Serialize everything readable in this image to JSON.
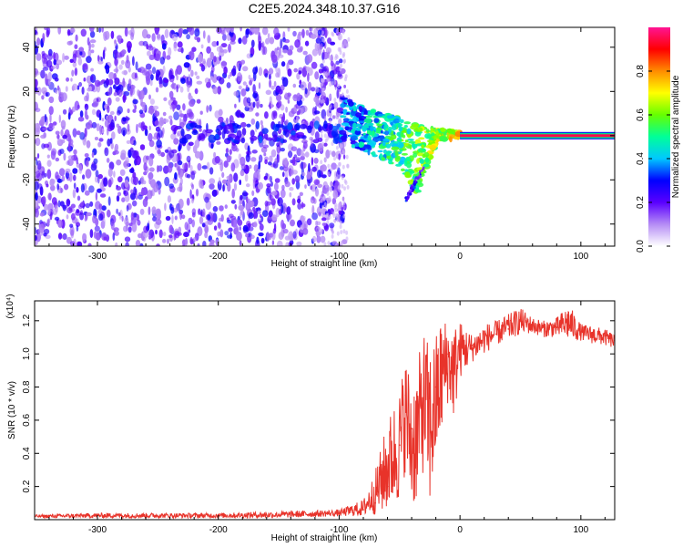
{
  "figure": {
    "title": "C2E5.2024.348.10.37.G16"
  },
  "chart_data": [
    {
      "type": "heatmap",
      "panel": "top",
      "title": "C2E5.2024.348.10.37.G16",
      "xlabel": "Height of straight line (km)",
      "ylabel": "Frequency (Hz)",
      "xlim": [
        -352,
        128
      ],
      "ylim": [
        -50,
        49
      ],
      "x_ticks": [
        -300,
        -200,
        -100,
        0,
        100
      ],
      "x_tick_labels": [
        "-300",
        "-200",
        "-100",
        "0",
        "100"
      ],
      "y_ticks": [
        -40,
        -20,
        0,
        20,
        40
      ],
      "y_tick_labels": [
        "-40",
        "-20",
        "0",
        "20",
        "40"
      ],
      "colorbar": {
        "label": "Normalized spectral amplitude",
        "range": [
          0,
          1
        ],
        "ticks": [
          0.0,
          0.2,
          0.4,
          0.6,
          0.8
        ],
        "tick_labels": [
          "0.0",
          "0.2",
          "0.4",
          "0.6",
          "0.8"
        ],
        "colormap": [
          "#ffffff",
          "#b58cf5",
          "#5a00ff",
          "#0000ff",
          "#00c8ff",
          "#00ff99",
          "#66ff00",
          "#ffff00",
          "#ff8c00",
          "#ff0000",
          "#ff1493"
        ]
      },
      "features": {
        "noise_region_x": [
          -352,
          -95
        ],
        "dispersive_tail": [
          {
            "x": -100,
            "f_upper": 18,
            "f_lower": -2
          },
          {
            "x": -75,
            "f_upper": 12,
            "f_lower": -8
          },
          {
            "x": -50,
            "f_upper": 8,
            "f_lower": -14
          },
          {
            "x": -35,
            "f_upper": 5,
            "f_lower": -28
          },
          {
            "x": -20,
            "f_upper": 3,
            "f_lower": -3
          },
          {
            "x": 0,
            "f_upper": 2,
            "f_lower": -1
          }
        ],
        "carrier_line": {
          "x_start": 0,
          "x_end": 128,
          "frequency": 0,
          "amplitude": 0.95
        }
      }
    },
    {
      "type": "line",
      "panel": "bottom",
      "xlabel": "Height of straight line (km)",
      "ylabel": "SNR (10 * v/v)",
      "y_multiplier": "(x10⁴)",
      "xlim": [
        -352,
        128
      ],
      "ylim": [
        0,
        1.32
      ],
      "x_ticks": [
        -300,
        -200,
        -100,
        0,
        100
      ],
      "x_tick_labels": [
        "-300",
        "-200",
        "-100",
        "0",
        "100"
      ],
      "y_ticks": [
        0.2,
        0.4,
        0.6,
        0.8,
        1.0,
        1.2
      ],
      "y_tick_labels": [
        "0.2",
        "0.4",
        "0.6",
        "0.8",
        "1.0",
        "1.2"
      ],
      "series": [
        {
          "color": "#e8332a",
          "x": [
            -352,
            -300,
            -200,
            -150,
            -100,
            -80,
            -70,
            -60,
            -50,
            -45,
            -40,
            -35,
            -30,
            -25,
            -20,
            -15,
            -10,
            -5,
            0,
            10,
            20,
            30,
            40,
            50,
            60,
            70,
            80,
            90,
            100,
            110,
            120,
            128
          ],
          "y": [
            0.03,
            0.03,
            0.03,
            0.03,
            0.04,
            0.06,
            0.1,
            0.2,
            0.45,
            0.75,
            0.55,
            0.7,
            0.85,
            0.75,
            0.8,
            0.95,
            1.0,
            0.92,
            1.02,
            1.05,
            1.08,
            1.12,
            1.15,
            1.2,
            1.18,
            1.17,
            1.16,
            1.15,
            1.13,
            1.12,
            1.11,
            1.08
          ]
        }
      ],
      "envelope_high": [
        0.03,
        0.04,
        0.04,
        0.05,
        0.06,
        0.12,
        0.3,
        0.6,
        0.8,
        1.0,
        0.85,
        0.95,
        1.15,
        1.05,
        1.12,
        1.24,
        1.2,
        1.18,
        1.2,
        1.12,
        1.18,
        1.2,
        1.24,
        1.28,
        1.22,
        1.2,
        1.22,
        1.3,
        1.18,
        1.17,
        1.15,
        1.12
      ],
      "envelope_low": [
        0.01,
        0.01,
        0.01,
        0.01,
        0.02,
        0.02,
        0.03,
        0.04,
        0.1,
        0.3,
        0.05,
        0.1,
        0.3,
        0.05,
        0.3,
        0.5,
        0.7,
        0.6,
        0.85,
        0.95,
        1.0,
        1.05,
        1.08,
        1.12,
        1.12,
        1.1,
        1.1,
        1.08,
        1.08,
        1.06,
        1.05,
        1.03
      ]
    }
  ]
}
